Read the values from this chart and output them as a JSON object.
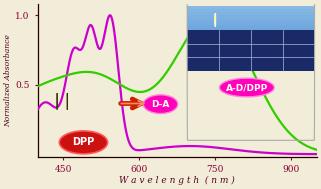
{
  "xlim": [
    400,
    950
  ],
  "ylim": [
    -0.02,
    1.08
  ],
  "xlabel": "W a v e l e n g t h  ( n m )",
  "ylabel": "Normalized Absorbance",
  "xticks": [
    450,
    600,
    750,
    900
  ],
  "yticks": [
    0.5,
    1.0
  ],
  "bg_color": "#f2edd8",
  "magenta_color": "#cc00cc",
  "green_color": "#33cc00",
  "axis_color": "#220000",
  "label_color": "#550022",
  "tick_color": "#880033",
  "dpp_fill": "#cc1111",
  "dpp_edge": "#ff5555",
  "pink_fill": "#ff00bb",
  "pink_edge": "#ff88dd",
  "arrow_color1": "#cc2200",
  "arrow_color2": "#ff8888",
  "solar_sky_top": "#4488cc",
  "solar_sky_bot": "#88bbee",
  "solar_panel": "#223388",
  "solar_line": "#aabbdd"
}
